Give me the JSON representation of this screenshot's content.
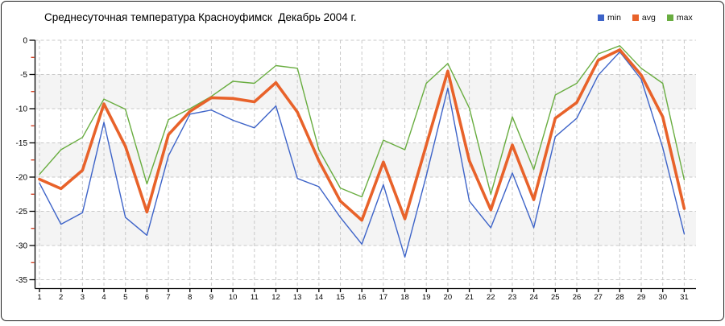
{
  "chart_data": {
    "type": "line",
    "title": "Среднесуточная температура Красноуфимск  Декабрь 2004 г.",
    "xlabel": "",
    "ylabel": "",
    "x": [
      1,
      2,
      3,
      4,
      5,
      6,
      7,
      8,
      9,
      10,
      11,
      12,
      13,
      14,
      15,
      16,
      17,
      18,
      19,
      20,
      21,
      22,
      23,
      24,
      25,
      26,
      27,
      28,
      29,
      30,
      31
    ],
    "xlim": [
      1,
      31
    ],
    "ylim": [
      -35,
      0
    ],
    "yticks": [
      0,
      -5,
      -10,
      -15,
      -20,
      -25,
      -30,
      -35
    ],
    "ytick_minor_step": 2.5,
    "grid": true,
    "grid_style": "dashed",
    "legend_position": "top-right",
    "band_fill": "#f4f4f4",
    "grid_color": "#c9c9c9",
    "axis_color": "#000000",
    "minor_tick_color": "#cc2200",
    "series": [
      {
        "name": "min",
        "color": "#3d63c8",
        "values": [
          -20.9,
          -26.9,
          -25.2,
          -12.0,
          -25.9,
          -28.5,
          -16.9,
          -10.8,
          -10.2,
          -11.7,
          -12.8,
          -9.6,
          -20.2,
          -21.4,
          -25.9,
          -29.8,
          -21.1,
          -31.7,
          -19.8,
          -7.0,
          -23.5,
          -27.4,
          -19.4,
          -27.4,
          -14.1,
          -11.4,
          -5.1,
          -1.7,
          -5.7,
          -15.7,
          -28.3
        ]
      },
      {
        "name": "avg",
        "color": "#e8622a",
        "values": [
          -20.3,
          -21.7,
          -19.0,
          -9.3,
          -15.5,
          -25.1,
          -13.8,
          -10.4,
          -8.4,
          -8.5,
          -9.0,
          -6.2,
          -10.5,
          -17.6,
          -23.5,
          -26.3,
          -17.8,
          -26.1,
          -15.3,
          -4.5,
          -17.6,
          -24.8,
          -15.3,
          -23.3,
          -11.4,
          -9.1,
          -2.9,
          -1.4,
          -5.1,
          -11.2,
          -24.6
        ]
      },
      {
        "name": "max",
        "color": "#69ad40",
        "values": [
          -19.6,
          -16.0,
          -14.2,
          -8.6,
          -10.1,
          -21.0,
          -11.6,
          -10.0,
          -8.2,
          -6.0,
          -6.3,
          -3.7,
          -4.1,
          -16.0,
          -21.6,
          -22.9,
          -14.6,
          -16.0,
          -6.3,
          -3.4,
          -9.9,
          -22.5,
          -11.2,
          -18.9,
          -8.0,
          -6.3,
          -2.0,
          -0.8,
          -4.1,
          -6.3,
          -20.4
        ]
      }
    ]
  }
}
